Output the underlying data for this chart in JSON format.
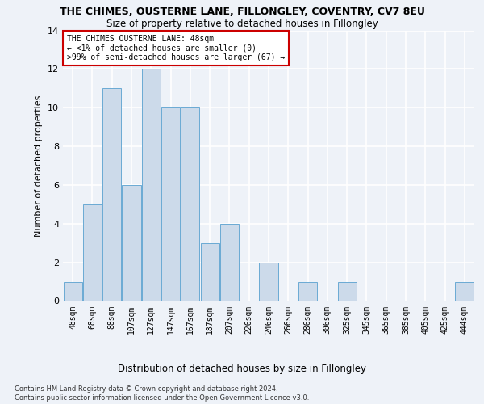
{
  "title": "THE CHIMES, OUSTERNE LANE, FILLONGLEY, COVENTRY, CV7 8EU",
  "subtitle": "Size of property relative to detached houses in Fillongley",
  "xlabel_bottom": "Distribution of detached houses by size in Fillongley",
  "ylabel": "Number of detached properties",
  "categories": [
    "48sqm",
    "68sqm",
    "88sqm",
    "107sqm",
    "127sqm",
    "147sqm",
    "167sqm",
    "187sqm",
    "207sqm",
    "226sqm",
    "246sqm",
    "266sqm",
    "286sqm",
    "306sqm",
    "325sqm",
    "345sqm",
    "365sqm",
    "385sqm",
    "405sqm",
    "425sqm",
    "444sqm"
  ],
  "values": [
    1,
    5,
    11,
    6,
    12,
    10,
    10,
    3,
    4,
    0,
    2,
    0,
    1,
    0,
    1,
    0,
    0,
    0,
    0,
    0,
    1
  ],
  "bar_color": "#ccdaea",
  "bar_edge_color": "#6aaad4",
  "ylim": [
    0,
    14
  ],
  "yticks": [
    0,
    2,
    4,
    6,
    8,
    10,
    12,
    14
  ],
  "annotation_title": "THE CHIMES OUSTERNE LANE: 48sqm",
  "annotation_line1": "← <1% of detached houses are smaller (0)",
  "annotation_line2": ">99% of semi-detached houses are larger (67) →",
  "annotation_box_color": "#ffffff",
  "annotation_box_edge_color": "#cc0000",
  "footer": "Contains HM Land Registry data © Crown copyright and database right 2024.\nContains public sector information licensed under the Open Government Licence v3.0.",
  "bg_color": "#eef2f8",
  "grid_color": "#ffffff",
  "title_fontsize": 9,
  "subtitle_fontsize": 8.5,
  "ylabel_fontsize": 8,
  "xtick_fontsize": 7,
  "ytick_fontsize": 8,
  "footer_fontsize": 6,
  "ann_fontsize": 7
}
